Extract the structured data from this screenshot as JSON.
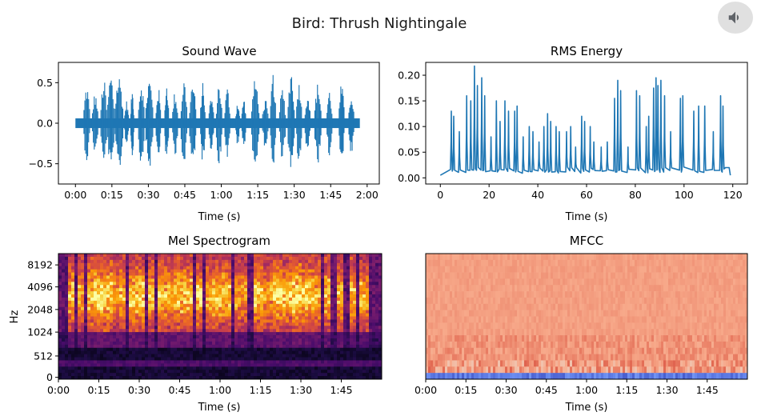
{
  "figure": {
    "title": "Bird: Thrush Nightingale",
    "audio_icon": "volume-icon"
  },
  "chart_data": [
    {
      "type": "line",
      "title": "Sound Wave",
      "xlabel": "Time (s)",
      "ylabel": "",
      "x_ticks": [
        "0:00",
        "0:15",
        "0:30",
        "0:45",
        "1:00",
        "1:15",
        "1:30",
        "1:45",
        "2:00"
      ],
      "x_tick_values": [
        0,
        15,
        30,
        45,
        60,
        75,
        90,
        105,
        120
      ],
      "y_ticks": [
        "0.5",
        "0.0",
        "−0.5"
      ],
      "y_tick_values": [
        0.5,
        0.0,
        -0.5
      ],
      "xlim": [
        -7,
        125
      ],
      "ylim": [
        -0.75,
        0.75
      ],
      "color": "#1f77b4",
      "bursts": [
        {
          "t0": 3.5,
          "t1": 5.8,
          "peak": 0.48
        },
        {
          "t0": 7.0,
          "t1": 9.2,
          "peak": 0.38
        },
        {
          "t0": 10.5,
          "t1": 12.8,
          "peak": 0.55
        },
        {
          "t0": 13.3,
          "t1": 15.8,
          "peak": 0.62
        },
        {
          "t0": 16.3,
          "t1": 19.5,
          "peak": 0.6
        },
        {
          "t0": 20.3,
          "t1": 21.8,
          "peak": 0.28
        },
        {
          "t0": 22.8,
          "t1": 24.0,
          "peak": 0.42
        },
        {
          "t0": 26.0,
          "t1": 28.2,
          "peak": 0.55
        },
        {
          "t0": 29.0,
          "t1": 31.8,
          "peak": 0.57
        },
        {
          "t0": 33.2,
          "t1": 35.0,
          "peak": 0.45
        },
        {
          "t0": 36.8,
          "t1": 38.3,
          "peak": 0.52
        },
        {
          "t0": 40.0,
          "t1": 42.0,
          "peak": 0.4
        },
        {
          "t0": 43.5,
          "t1": 45.8,
          "peak": 0.56
        },
        {
          "t0": 47.0,
          "t1": 49.5,
          "peak": 0.52
        },
        {
          "t0": 51.5,
          "t1": 53.3,
          "peak": 0.5
        },
        {
          "t0": 55.0,
          "t1": 56.8,
          "peak": 0.35
        },
        {
          "t0": 58.0,
          "t1": 60.2,
          "peak": 0.52
        },
        {
          "t0": 61.5,
          "t1": 63.5,
          "peak": 0.45
        },
        {
          "t0": 66.0,
          "t1": 67.5,
          "peak": 0.28
        },
        {
          "t0": 68.5,
          "t1": 70.0,
          "peak": 0.32
        },
        {
          "t0": 72.5,
          "t1": 75.5,
          "peak": 0.55
        },
        {
          "t0": 77.0,
          "t1": 79.2,
          "peak": 0.3
        },
        {
          "t0": 80.3,
          "t1": 82.3,
          "peak": 0.62
        },
        {
          "t0": 84.0,
          "t1": 86.3,
          "peak": 0.45
        },
        {
          "t0": 87.5,
          "t1": 90.0,
          "peak": 0.68
        },
        {
          "t0": 91.0,
          "t1": 93.0,
          "peak": 0.55
        },
        {
          "t0": 94.5,
          "t1": 96.5,
          "peak": 0.4
        },
        {
          "t0": 98.5,
          "t1": 101.0,
          "peak": 0.5
        },
        {
          "t0": 103.5,
          "t1": 105.5,
          "peak": 0.42
        },
        {
          "t0": 108.5,
          "t1": 110.5,
          "peak": 0.5
        },
        {
          "t0": 112.5,
          "t1": 114.5,
          "peak": 0.4
        }
      ],
      "baseline_thickness": 0.06,
      "signal_range": [
        0,
        117
      ]
    },
    {
      "type": "line",
      "title": "RMS Energy",
      "xlabel": "Time (s)",
      "ylabel": "",
      "x_ticks": [
        "0",
        "20",
        "40",
        "60",
        "80",
        "100",
        "120"
      ],
      "x_tick_values": [
        0,
        20,
        40,
        60,
        80,
        100,
        120
      ],
      "y_ticks": [
        "0.20",
        "0.15",
        "0.10",
        "0.05",
        "0.00"
      ],
      "y_tick_values": [
        0.2,
        0.15,
        0.1,
        0.05,
        0.0
      ],
      "xlim": [
        -6,
        126
      ],
      "ylim": [
        -0.012,
        0.225
      ],
      "color": "#1f77b4",
      "baseline": 0.005,
      "peaks": [
        [
          4.5,
          0.13
        ],
        [
          5.5,
          0.12
        ],
        [
          7.8,
          0.09
        ],
        [
          10.8,
          0.16
        ],
        [
          12.5,
          0.15
        ],
        [
          14.0,
          0.218
        ],
        [
          15.2,
          0.18
        ],
        [
          17.0,
          0.195
        ],
        [
          18.2,
          0.16
        ],
        [
          20.8,
          0.08
        ],
        [
          23.0,
          0.15
        ],
        [
          24.5,
          0.11
        ],
        [
          26.5,
          0.15
        ],
        [
          28.0,
          0.13
        ],
        [
          30.5,
          0.13
        ],
        [
          31.5,
          0.14
        ],
        [
          34.0,
          0.08
        ],
        [
          36.5,
          0.1
        ],
        [
          38.0,
          0.09
        ],
        [
          40.5,
          0.07
        ],
        [
          42.5,
          0.1
        ],
        [
          44.0,
          0.125
        ],
        [
          45.3,
          0.11
        ],
        [
          47.5,
          0.1
        ],
        [
          48.8,
          0.09
        ],
        [
          51.8,
          0.09
        ],
        [
          53.5,
          0.1
        ],
        [
          55.5,
          0.06
        ],
        [
          58.0,
          0.12
        ],
        [
          59.2,
          0.11
        ],
        [
          61.5,
          0.1
        ],
        [
          63.0,
          0.07
        ],
        [
          66.0,
          0.06
        ],
        [
          68.5,
          0.07
        ],
        [
          71.5,
          0.155
        ],
        [
          72.8,
          0.19
        ],
        [
          74.0,
          0.17
        ],
        [
          77.0,
          0.06
        ],
        [
          80.5,
          0.17
        ],
        [
          81.8,
          0.16
        ],
        [
          84.5,
          0.1
        ],
        [
          85.5,
          0.12
        ],
        [
          87.5,
          0.175
        ],
        [
          88.5,
          0.195
        ],
        [
          89.3,
          0.18
        ],
        [
          90.5,
          0.19
        ],
        [
          92.0,
          0.16
        ],
        [
          94.5,
          0.09
        ],
        [
          98.5,
          0.155
        ],
        [
          99.5,
          0.16
        ],
        [
          104.0,
          0.13
        ],
        [
          106.0,
          0.14
        ],
        [
          108.5,
          0.14
        ],
        [
          112.0,
          0.09
        ],
        [
          115.0,
          0.16
        ],
        [
          116.0,
          0.14
        ]
      ],
      "tail_level": 0.02
    },
    {
      "type": "heatmap",
      "title": "Mel Spectrogram",
      "xlabel": "Time (s)",
      "ylabel": "Hz",
      "x_ticks": [
        "0:00",
        "0:15",
        "0:30",
        "0:45",
        "1:00",
        "1:15",
        "1:30",
        "1:45"
      ],
      "x_tick_values": [
        0,
        15,
        30,
        45,
        60,
        75,
        90,
        105
      ],
      "y_ticks": [
        "8192",
        "4096",
        "2048",
        "1024",
        "512",
        "0"
      ],
      "y_tick_fractions": [
        0.09,
        0.265,
        0.445,
        0.625,
        0.815,
        0.985
      ],
      "xlim": [
        0,
        120
      ],
      "colormap": "magma",
      "colormap_stops": [
        "#000004",
        "#1b0c41",
        "#4a0c6b",
        "#781c6d",
        "#a52c60",
        "#cf4446",
        "#ed6925",
        "#fb9b06",
        "#f7d13d",
        "#fcffa4"
      ]
    },
    {
      "type": "heatmap",
      "title": "MFCC",
      "xlabel": "Time (s)",
      "ylabel": "",
      "x_ticks": [
        "0:00",
        "0:15",
        "0:30",
        "0:45",
        "1:00",
        "1:15",
        "1:30",
        "1:45"
      ],
      "x_tick_values": [
        0,
        15,
        30,
        45,
        60,
        75,
        90,
        105
      ],
      "xlim": [
        0,
        120
      ],
      "n_coefficients": 20,
      "colormap": "coolwarm",
      "colormap_stops": [
        "#3b4cc0",
        "#6788ee",
        "#9abbff",
        "#c9d7f0",
        "#edd1c2",
        "#f7a889",
        "#e26952",
        "#b40426"
      ]
    }
  ]
}
